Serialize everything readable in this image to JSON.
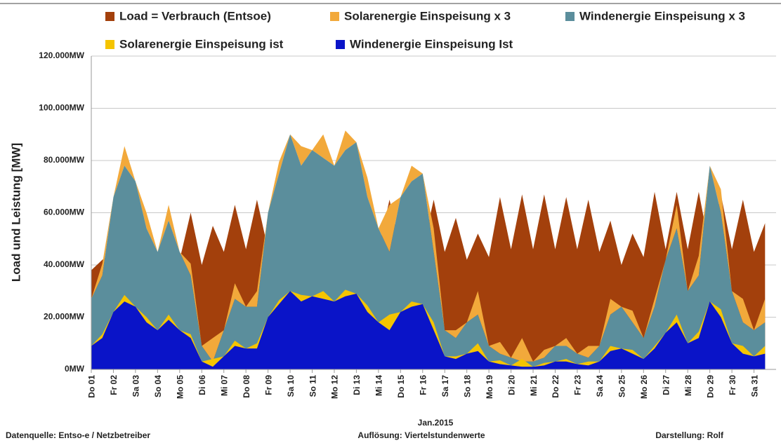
{
  "chart_data": {
    "type": "area",
    "y_label": "Load und Leistung  [MW]",
    "x_label": "Jan.2015",
    "footnotes": [
      "Datenquelle:  Entso-e  / Netzbetreiber",
      "Auflösung: Viertelstundenwerte",
      "Darstellung: Rolf"
    ],
    "xlim": [
      1,
      32
    ],
    "xticks": [
      {
        "value": 1,
        "label": "Do 01"
      },
      {
        "value": 2,
        "label": "Fr 02"
      },
      {
        "value": 3,
        "label": "Sa 03"
      },
      {
        "value": 4,
        "label": "So 04"
      },
      {
        "value": 5,
        "label": "Mo 05"
      },
      {
        "value": 6,
        "label": "Di 06"
      },
      {
        "value": 7,
        "label": "Mi 07"
      },
      {
        "value": 8,
        "label": "Do 08"
      },
      {
        "value": 9,
        "label": "Fr 09"
      },
      {
        "value": 10,
        "label": "Sa 10"
      },
      {
        "value": 11,
        "label": "So 11"
      },
      {
        "value": 12,
        "label": "Mo 12"
      },
      {
        "value": 13,
        "label": "Di 13"
      },
      {
        "value": 14,
        "label": "Mi 14"
      },
      {
        "value": 15,
        "label": "Do 15"
      },
      {
        "value": 16,
        "label": "Fr 16"
      },
      {
        "value": 17,
        "label": "Sa 17"
      },
      {
        "value": 18,
        "label": "So 18"
      },
      {
        "value": 19,
        "label": "Mo 19"
      },
      {
        "value": 20,
        "label": "Di 20"
      },
      {
        "value": 21,
        "label": "Mi 21"
      },
      {
        "value": 22,
        "label": "Do 22"
      },
      {
        "value": 23,
        "label": "Fr 23"
      },
      {
        "value": 24,
        "label": "Sa 24"
      },
      {
        "value": 25,
        "label": "So 25"
      },
      {
        "value": 26,
        "label": "Mo 26"
      },
      {
        "value": 27,
        "label": "Di 27"
      },
      {
        "value": 28,
        "label": "Mi 28"
      },
      {
        "value": 29,
        "label": "Do 29"
      },
      {
        "value": 30,
        "label": "Fr 30"
      },
      {
        "value": 31,
        "label": "Sa 31"
      }
    ],
    "ylim": [
      0,
      120000
    ],
    "yticks": [
      {
        "value": 0,
        "label": "0MW"
      },
      {
        "value": 20000,
        "label": "20.000MW"
      },
      {
        "value": 40000,
        "label": "40.000MW"
      },
      {
        "value": 60000,
        "label": "60.000MW"
      },
      {
        "value": 80000,
        "label": "80.000MW"
      },
      {
        "value": 100000,
        "label": "100.000MW"
      },
      {
        "value": 120000,
        "label": "120.000MW"
      }
    ],
    "grid": true,
    "x": [
      1,
      1.5,
      2,
      2.5,
      3,
      3.5,
      4,
      4.5,
      5,
      5.5,
      6,
      6.5,
      7,
      7.5,
      8,
      8.5,
      9,
      9.5,
      10,
      10.5,
      11,
      11.5,
      12,
      12.5,
      13,
      13.5,
      14,
      14.5,
      15,
      15.5,
      16,
      16.5,
      17,
      17.5,
      18,
      18.5,
      19,
      19.5,
      20,
      20.5,
      21,
      21.5,
      22,
      22.5,
      23,
      23.5,
      24,
      24.5,
      25,
      25.5,
      26,
      26.5,
      27,
      27.5,
      28,
      28.5,
      29,
      29.5,
      30,
      30.5,
      31,
      31.5
    ],
    "series": [
      {
        "name": "Load =  Verbrauch (Entsoe)",
        "color": "#a3400c",
        "values": [
          38000,
          42000,
          45000,
          55000,
          43000,
          50000,
          40000,
          47000,
          42000,
          60000,
          40000,
          55000,
          45000,
          63000,
          46000,
          65000,
          46000,
          63000,
          44000,
          55000,
          40000,
          52000,
          45000,
          65000,
          46000,
          66000,
          46000,
          65000,
          46000,
          66000,
          46000,
          65000,
          45000,
          58000,
          42000,
          52000,
          43000,
          66000,
          46000,
          67000,
          46000,
          67000,
          46000,
          66000,
          46000,
          65000,
          45000,
          57000,
          40000,
          52000,
          43000,
          68000,
          46000,
          68000,
          46000,
          68000,
          46000,
          67000,
          46000,
          65000,
          45000,
          56000
        ]
      },
      {
        "name": "Solarenergie Einspeisung x 3",
        "color": "#f2a93b",
        "stack_on": 2,
        "values": [
          0,
          4500,
          0,
          7500,
          0,
          6000,
          0,
          6000,
          0,
          4500,
          0,
          9000,
          0,
          6000,
          0,
          6000,
          0,
          4500,
          0,
          7500,
          0,
          9000,
          0,
          7500,
          0,
          7500,
          0,
          18000,
          0,
          6000,
          0,
          9000,
          0,
          3000,
          0,
          9000,
          0,
          4500,
          0,
          9000,
          0,
          3000,
          0,
          3000,
          0,
          4500,
          0,
          6000,
          0,
          4500,
          0,
          3000,
          0,
          9000,
          0,
          7500,
          0,
          9000,
          0,
          9000,
          0,
          9000
        ]
      },
      {
        "name": "Windenergie Einspeisung x 3",
        "color": "#5b8e9c",
        "values": [
          27000,
          36000,
          66000,
          78000,
          72000,
          54000,
          45000,
          57000,
          45000,
          36000,
          9000,
          3000,
          15000,
          27000,
          24000,
          24000,
          60000,
          75000,
          90000,
          78000,
          84000,
          81000,
          78000,
          84000,
          87000,
          66000,
          54000,
          45000,
          66000,
          72000,
          75000,
          45000,
          15000,
          12000,
          18000,
          21000,
          9000,
          6000,
          4500,
          3000,
          3000,
          4500,
          9000,
          9000,
          6000,
          4500,
          9000,
          21000,
          24000,
          18000,
          12000,
          24000,
          42000,
          54000,
          30000,
          36000,
          78000,
          60000,
          30000,
          18000,
          15000,
          18000
        ]
      },
      {
        "name": "Solarenergie Einspeisung ist",
        "color": "#f5c400",
        "stack_on": 4,
        "values": [
          0,
          1500,
          0,
          2500,
          0,
          2000,
          0,
          2000,
          0,
          1500,
          0,
          3000,
          0,
          2000,
          0,
          2000,
          0,
          1500,
          0,
          2500,
          0,
          3000,
          0,
          2500,
          0,
          2500,
          0,
          6000,
          0,
          2000,
          0,
          3000,
          0,
          1000,
          0,
          3000,
          0,
          1500,
          0,
          3000,
          0,
          1000,
          0,
          1000,
          0,
          1500,
          0,
          2000,
          0,
          1500,
          0,
          1000,
          0,
          3000,
          0,
          2500,
          0,
          3000,
          0,
          3000,
          0,
          3000
        ]
      },
      {
        "name": "Windenergie Einspeisung Ist",
        "color": "#0a14c8",
        "values": [
          9000,
          12000,
          22000,
          26000,
          24000,
          18000,
          15000,
          19000,
          15000,
          12000,
          3000,
          1000,
          5000,
          9000,
          8000,
          8000,
          20000,
          25000,
          30000,
          26000,
          28000,
          27000,
          26000,
          28000,
          29000,
          22000,
          18000,
          15000,
          22000,
          24000,
          25000,
          15000,
          5000,
          4000,
          6000,
          7000,
          3000,
          2000,
          1500,
          1000,
          1000,
          1500,
          3000,
          3000,
          2000,
          1500,
          3000,
          7000,
          8000,
          6000,
          4000,
          8000,
          14000,
          18000,
          10000,
          12000,
          26000,
          20000,
          10000,
          6000,
          5000,
          6000
        ]
      }
    ]
  }
}
